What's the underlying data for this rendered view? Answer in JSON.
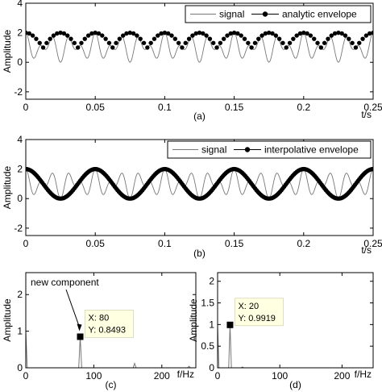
{
  "chart_data": [
    {
      "id": "a",
      "type": "line",
      "panel_label": "(a)",
      "xlabel": "t/s",
      "ylabel": "Amplitude",
      "xlim": [
        0,
        0.25
      ],
      "ylim": [
        -2.5,
        4
      ],
      "xticks": [
        0,
        0.05,
        0.1,
        0.15,
        0.2,
        0.25
      ],
      "xtick_labels": [
        "0",
        "0.05",
        "0.1",
        "0.15",
        "0.2",
        "0.25"
      ],
      "yticks": [
        -2,
        0,
        2,
        4
      ],
      "ytick_labels": [
        "-2",
        "0",
        "2",
        "4"
      ],
      "legend_position": "top-right",
      "series": [
        {
          "name": "signal",
          "style": "thin-line",
          "formula": "1 + cos(2*pi*20*t) * cos(2*pi*80*t)",
          "t_range": [
            0,
            0.25
          ],
          "sample_step": 0.0005
        },
        {
          "name": "analytic envelope",
          "style": "dots",
          "formula": "1 + |cos(2*pi*20*t)|",
          "t_range": [
            0,
            0.25
          ],
          "sample_step": 0.0025
        }
      ]
    },
    {
      "id": "b",
      "type": "line",
      "panel_label": "(b)",
      "xlabel": "t/s",
      "ylabel": "Amplitude",
      "xlim": [
        0,
        0.25
      ],
      "ylim": [
        -2.5,
        4
      ],
      "xticks": [
        0,
        0.05,
        0.1,
        0.15,
        0.2,
        0.25
      ],
      "xtick_labels": [
        "0",
        "0.05",
        "0.1",
        "0.15",
        "0.2",
        "0.25"
      ],
      "yticks": [
        -2,
        0,
        2,
        4
      ],
      "ytick_labels": [
        "-2",
        "0",
        "2",
        "4"
      ],
      "legend_position": "top-right",
      "series": [
        {
          "name": "signal",
          "style": "thin-line",
          "formula": "1 + cos(2*pi*20*t) * cos(2*pi*80*t)",
          "t_range": [
            0,
            0.25
          ],
          "sample_step": 0.0005
        },
        {
          "name": "interpolative envelope",
          "style": "dots",
          "formula": "1 + cos(2*pi*20*t)",
          "t_range": [
            0,
            0.25
          ],
          "sample_step": 0.001
        }
      ]
    },
    {
      "id": "c",
      "type": "line",
      "panel_label": "(c)",
      "xlabel": "f/Hz",
      "ylabel": "Amplitude",
      "xlim": [
        0,
        250
      ],
      "ylim": [
        0,
        2.6
      ],
      "xticks": [
        0,
        100,
        200
      ],
      "xtick_labels": [
        "0",
        "100",
        "200"
      ],
      "yticks": [
        0,
        1,
        2
      ],
      "ytick_labels": [
        "0",
        "1",
        "2"
      ],
      "series": [
        {
          "name": "",
          "peaks": [
            {
              "f": 0,
              "a": 1.0
            },
            {
              "f": 80,
              "a": 0.8493
            },
            {
              "f": 160,
              "a": 0.12
            },
            {
              "f": 240,
              "a": 0.04
            }
          ]
        }
      ],
      "marker": {
        "x": 80,
        "y": 0.8493
      },
      "datatip": {
        "line1": "X: 80",
        "line2": "Y: 0.8493"
      },
      "annotation": "new component"
    },
    {
      "id": "d",
      "type": "line",
      "panel_label": "(d)",
      "xlabel": "f/Hz",
      "ylabel": "Amplitude",
      "xlim": [
        0,
        250
      ],
      "ylim": [
        0,
        2.2
      ],
      "xticks": [
        0,
        100,
        200
      ],
      "xtick_labels": [
        "0",
        "100",
        "200"
      ],
      "yticks": [
        0,
        0.5,
        1,
        1.5,
        2
      ],
      "ytick_labels": [
        "0",
        "0.5",
        "1",
        "1.5",
        "2"
      ],
      "series": [
        {
          "name": "",
          "peaks": [
            {
              "f": 0,
              "a": 1.0
            },
            {
              "f": 20,
              "a": 0.9919
            },
            {
              "f": 40,
              "a": 0.02
            }
          ]
        }
      ],
      "marker": {
        "x": 20,
        "y": 0.9919
      },
      "datatip": {
        "line1": "X: 20",
        "line2": "Y: 0.9919"
      }
    }
  ],
  "colors": {
    "signal": "#777777",
    "envelope": "#000000",
    "datatip_bg": "#ffffe1",
    "axes": "#000000"
  }
}
